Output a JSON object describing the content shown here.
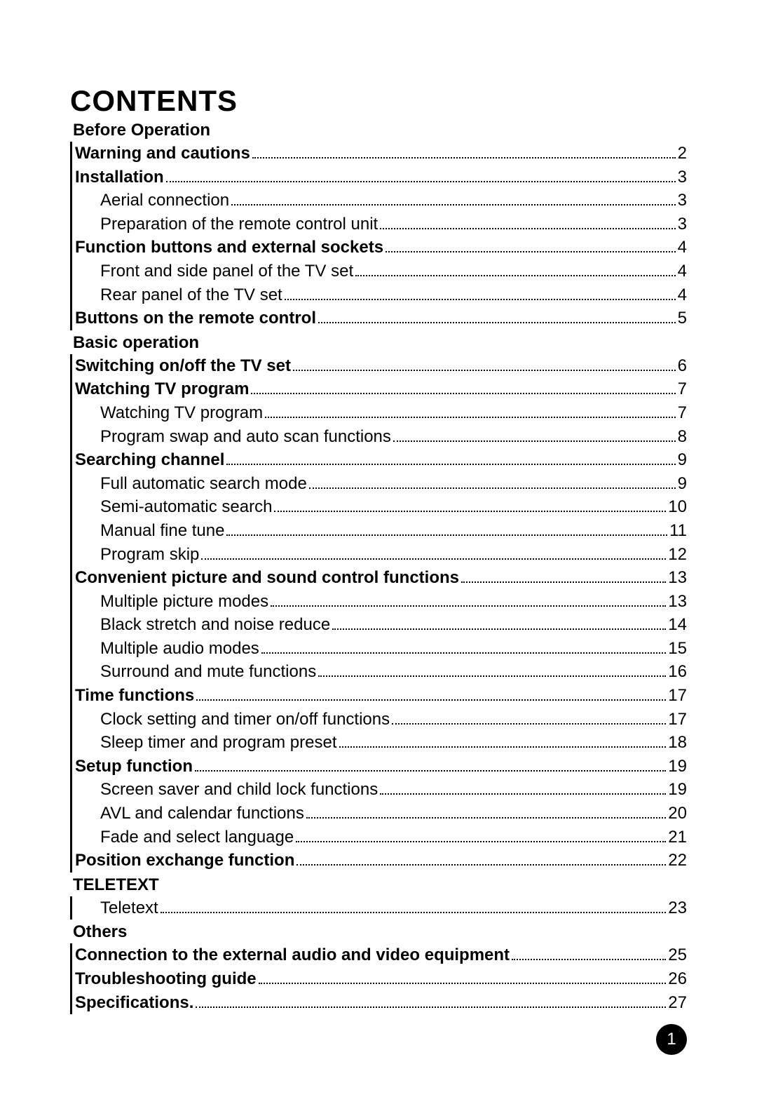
{
  "title": "CONTENTS",
  "page_number": "1",
  "colors": {
    "text": "#000000",
    "background": "#ffffff",
    "bar": "#000000",
    "badge_bg": "#000000",
    "badge_text": "#ffffff"
  },
  "typography": {
    "title_fontsize": 42,
    "heading_fontsize": 24,
    "line_fontsize": 24
  },
  "sections": [
    {
      "heading": "Before Operation",
      "groups": [
        {
          "items": [
            {
              "label": "Warning and cautions",
              "page": "2",
              "bold": true,
              "indent": false
            },
            {
              "label": "Installation",
              "page": "3",
              "bold": true,
              "indent": false
            },
            {
              "label": "Aerial connection",
              "page": "3",
              "bold": false,
              "indent": true
            },
            {
              "label": "Preparation of the remote control unit",
              "page": "3",
              "bold": false,
              "indent": true
            },
            {
              "label": "Function buttons and external sockets",
              "page": "4",
              "bold": true,
              "indent": false
            },
            {
              "label": "Front and side panel of the TV set",
              "page": "4",
              "bold": false,
              "indent": true
            },
            {
              "label": "Rear panel of the TV set",
              "page": "4",
              "bold": false,
              "indent": true
            },
            {
              "label": "Buttons on the remote control",
              "page": "5",
              "bold": true,
              "indent": false
            }
          ]
        }
      ]
    },
    {
      "heading": "Basic operation",
      "groups": [
        {
          "items": [
            {
              "label": "Switching on/off the TV set",
              "page": "6",
              "bold": true,
              "indent": false
            },
            {
              "label": "Watching TV program",
              "page": "7",
              "bold": true,
              "indent": false
            },
            {
              "label": "Watching TV program",
              "page": "7",
              "bold": false,
              "indent": true
            },
            {
              "label": "Program swap and auto scan functions",
              "page": "8",
              "bold": false,
              "indent": true
            },
            {
              "label": "Searching channel",
              "page": "9",
              "bold": true,
              "indent": false
            },
            {
              "label": "Full automatic search mode",
              "page": "9",
              "bold": false,
              "indent": true
            },
            {
              "label": "Semi-automatic search",
              "page": "10",
              "bold": false,
              "indent": true
            },
            {
              "label": "Manual fine tune",
              "page": "11",
              "bold": false,
              "indent": true
            },
            {
              "label": "Program skip ",
              "page": "12",
              "bold": false,
              "indent": true
            },
            {
              "label": "Convenient picture and sound control functions",
              "page": "13",
              "bold": true,
              "indent": false
            },
            {
              "label": "Multiple picture modes ",
              "page": "13",
              "bold": false,
              "indent": true
            },
            {
              "label": "Black stretch and noise reduce",
              "page": "14",
              "bold": false,
              "indent": true
            },
            {
              "label": "Multiple  audio  modes",
              "page": "15",
              "bold": false,
              "indent": true
            },
            {
              "label": "Surround and mute functions",
              "page": "16",
              "bold": false,
              "indent": true
            },
            {
              "label": "Time functions",
              "page": "17",
              "bold": true,
              "indent": false
            },
            {
              "label": "Clock setting  and timer on/off   functions",
              "page": "17",
              "bold": false,
              "indent": true
            },
            {
              "label": "Sleep  timer  and program preset ",
              "page": "18",
              "bold": false,
              "indent": true
            },
            {
              "label": "Setup function ",
              "page": "19",
              "bold": true,
              "indent": false
            },
            {
              "label": "Screen saver and child lock functions",
              "page": "19",
              "bold": false,
              "indent": true
            },
            {
              "label": "AVL and calendar functions",
              "page": "20",
              "bold": false,
              "indent": true
            },
            {
              "label": "Fade and select language",
              "page": "21",
              "bold": false,
              "indent": true
            },
            {
              "label": "Position exchange function",
              "page": "22",
              "bold": true,
              "indent": false
            }
          ]
        }
      ]
    },
    {
      "heading": "TELETEXT",
      "groups": [
        {
          "items": [
            {
              "label": "Teletext",
              "page": "23",
              "bold": false,
              "indent": true
            }
          ]
        }
      ]
    },
    {
      "heading": "Others",
      "groups": [
        {
          "items": [
            {
              "label": "Connection to the external audio and video equipment",
              "page": "25",
              "bold": true,
              "indent": false
            },
            {
              "label": "Troubleshooting guide",
              "page": "26",
              "bold": true,
              "indent": false
            },
            {
              "label": "Specifications.",
              "page": "27",
              "bold": true,
              "indent": false
            }
          ]
        }
      ]
    }
  ]
}
